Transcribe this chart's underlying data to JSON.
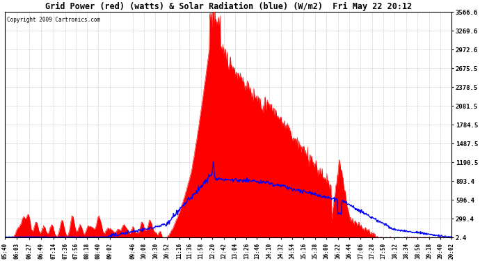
{
  "title": "Grid Power (red) (watts) & Solar Radiation (blue) (W/m2)  Fri May 22 20:12",
  "copyright": "Copyright 2009 Cartronics.com",
  "background_color": "#ffffff",
  "plot_bg_color": "#ffffff",
  "grid_color": "#999999",
  "red_fill_color": "#ff0000",
  "blue_line_color": "#0000ff",
  "yticks": [
    2.4,
    299.4,
    596.4,
    893.4,
    1190.5,
    1487.5,
    1784.5,
    2081.5,
    2378.5,
    2675.5,
    2972.6,
    3269.6,
    3566.6
  ],
  "ymin": 0,
  "ymax": 3566.6,
  "x_labels": [
    "05:40",
    "06:03",
    "06:27",
    "06:49",
    "07:14",
    "07:36",
    "07:56",
    "08:18",
    "08:40",
    "09:02",
    "09:46",
    "10:08",
    "10:30",
    "10:52",
    "11:16",
    "11:36",
    "11:58",
    "12:20",
    "12:42",
    "13:04",
    "13:26",
    "13:46",
    "14:10",
    "14:32",
    "14:54",
    "15:16",
    "15:38",
    "16:00",
    "16:22",
    "16:44",
    "17:06",
    "17:28",
    "17:50",
    "18:12",
    "18:34",
    "18:56",
    "19:18",
    "19:40",
    "20:02"
  ]
}
